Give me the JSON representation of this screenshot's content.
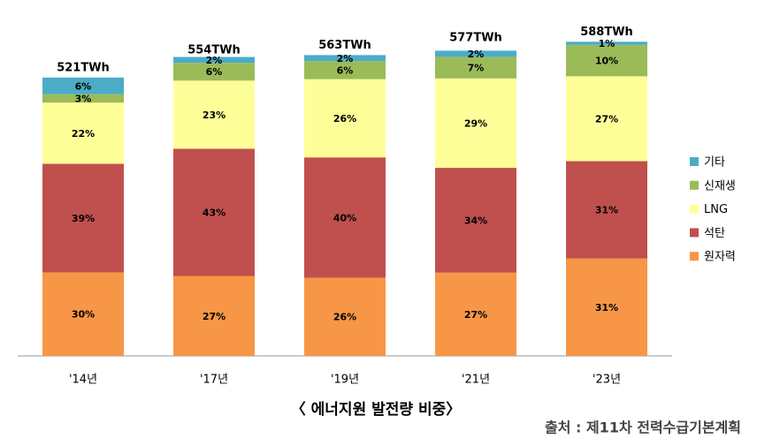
{
  "chart_data": {
    "type": "stacked_bar",
    "title": "〈 에너지원 발전량 비중〉",
    "source": "출처 : 제11차 전력수급기본계획",
    "categories": [
      "'14년",
      "'17년",
      "'19년",
      "'21년",
      "'23년"
    ],
    "ylim": [
      0,
      600
    ],
    "totals": {
      "values": [
        521,
        554,
        563,
        577,
        588
      ],
      "value_labels": [
        "521TWh",
        "554TWh",
        "563TWh",
        "577TWh",
        "588TWh"
      ]
    },
    "series": [
      {
        "name": "원자력",
        "color": "#f79646",
        "values": [
          30,
          27,
          26,
          27,
          31
        ],
        "value_labels": [
          "30%",
          "27%",
          "26%",
          "27%",
          "31%"
        ]
      },
      {
        "name": "석탄",
        "color": "#c0504d",
        "values": [
          39,
          43,
          40,
          34,
          31
        ],
        "value_labels": [
          "39%",
          "43%",
          "40%",
          "34%",
          "31%"
        ]
      },
      {
        "name": "LNG",
        "color": "#ffff99",
        "values": [
          22,
          23,
          26,
          29,
          27
        ],
        "value_labels": [
          "22%",
          "23%",
          "26%",
          "29%",
          "27%"
        ]
      },
      {
        "name": "신재생",
        "color": "#9bbb59",
        "values": [
          3,
          6,
          6,
          7,
          10
        ],
        "value_labels": [
          "3%",
          "6%",
          "6%",
          "7%",
          "10%"
        ]
      },
      {
        "name": "기타",
        "color": "#4bacc6",
        "values": [
          6,
          2,
          2,
          2,
          1
        ],
        "value_labels": [
          "6%",
          "2%",
          "2%",
          "2%",
          "1%"
        ]
      }
    ]
  }
}
